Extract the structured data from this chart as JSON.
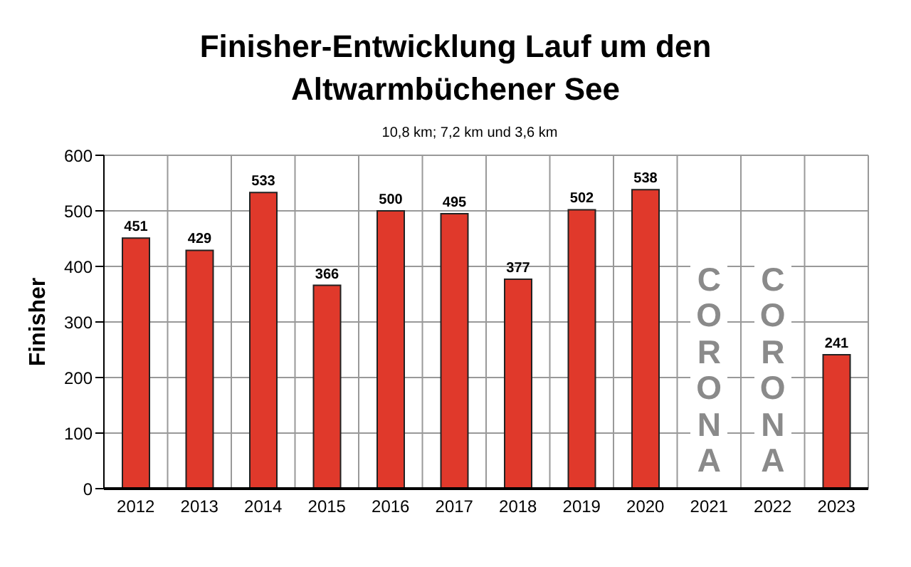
{
  "chart_data": {
    "type": "bar",
    "title": "Finisher-Entwicklung Lauf um den Altwarmbüchener See",
    "subtitle": "10,8 km; 7,2 km und 3,6 km",
    "ylabel": "Finisher",
    "categories": [
      "2012",
      "2013",
      "2014",
      "2015",
      "2016",
      "2017",
      "2018",
      "2019",
      "2020",
      "2021",
      "2022",
      "2023"
    ],
    "values": [
      451,
      429,
      533,
      366,
      500,
      495,
      377,
      502,
      538,
      null,
      null,
      241
    ],
    "color": "#e0392b",
    "ylim": [
      0,
      600
    ],
    "yticks": [
      0,
      100,
      200,
      300,
      400,
      500,
      600
    ],
    "grid": true,
    "data_labels": true,
    "annotations": [
      "CORONA",
      "CORONA"
    ]
  }
}
